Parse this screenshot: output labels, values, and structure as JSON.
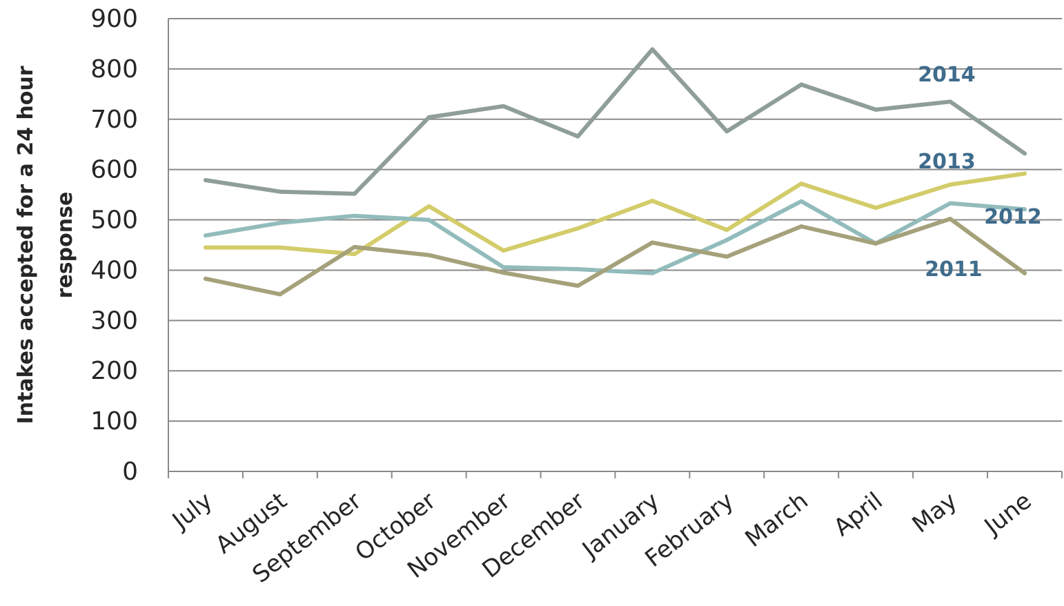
{
  "chart_data": {
    "type": "line",
    "categories": [
      "July",
      "August",
      "September",
      "October",
      "November",
      "December",
      "January",
      "February",
      "March",
      "April",
      "May",
      "June"
    ],
    "series": [
      {
        "name": "2014",
        "color": "#8f9e98",
        "values": [
          579,
          556,
          552,
          704,
          726,
          666,
          839,
          676,
          769,
          719,
          735,
          632
        ]
      },
      {
        "name": "2013",
        "color": "#d3cc6a",
        "values": [
          445,
          445,
          432,
          527,
          439,
          483,
          538,
          480,
          572,
          524,
          570,
          592
        ]
      },
      {
        "name": "2012",
        "color": "#92bcbb",
        "values": [
          469,
          494,
          508,
          500,
          406,
          402,
          394,
          460,
          537,
          453,
          533,
          521
        ]
      },
      {
        "name": "2011",
        "color": "#a5a17a",
        "values": [
          383,
          352,
          446,
          430,
          395,
          369,
          455,
          427,
          487,
          453,
          502,
          394
        ]
      }
    ],
    "ylabel_line1": "Intakes accepted for a 24 hour",
    "ylabel_line2": "response",
    "ylim": [
      0,
      900
    ],
    "yticks": [
      "0",
      "100",
      "200",
      "300",
      "400",
      "500",
      "600",
      "700",
      "800",
      "900"
    ],
    "grid": true,
    "label_color": "#3f6c8c"
  }
}
